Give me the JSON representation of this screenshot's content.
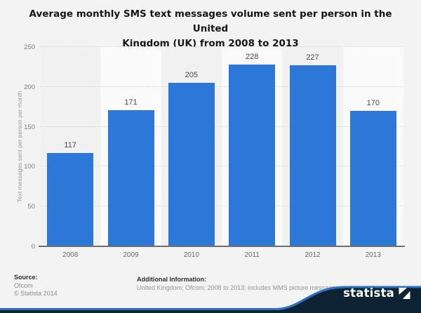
{
  "header": {
    "title_line1": "Average monthly SMS text messages volume sent per person in the United",
    "title_line2": "Kingdom (UK) from 2008 to 2013"
  },
  "chart_data": {
    "type": "bar",
    "title": "Average monthly SMS text messages volume sent per person in the United Kingdom (UK) from 2008 to 2013",
    "categories": [
      "2008",
      "2009",
      "2010",
      "2011",
      "2012",
      "2013"
    ],
    "values": [
      117,
      171,
      205,
      228,
      227,
      170
    ],
    "xlabel": "",
    "ylabel": "Text messages sent per person per month",
    "ylim": [
      0,
      250
    ],
    "yticks": [
      0,
      50,
      100,
      150,
      200,
      250
    ],
    "grid": "horizontal-dotted",
    "legend": "none",
    "bar_color": "#2d77d8",
    "band_color_odd": "#f1f1f1",
    "band_color_even": "#fafafa"
  },
  "footer": {
    "source_label": "Source:",
    "source_lines": [
      "Ofcom",
      "© Statista 2014"
    ],
    "additional_label": "Additional Information:",
    "additional_text": "United Kingdom; Ofcom; 2008 to 2013; includes MMS picture messages"
  },
  "branding": {
    "logo_text": "statista",
    "navy": "#0d2233",
    "swoosh_blue": "#2b6fc6"
  }
}
